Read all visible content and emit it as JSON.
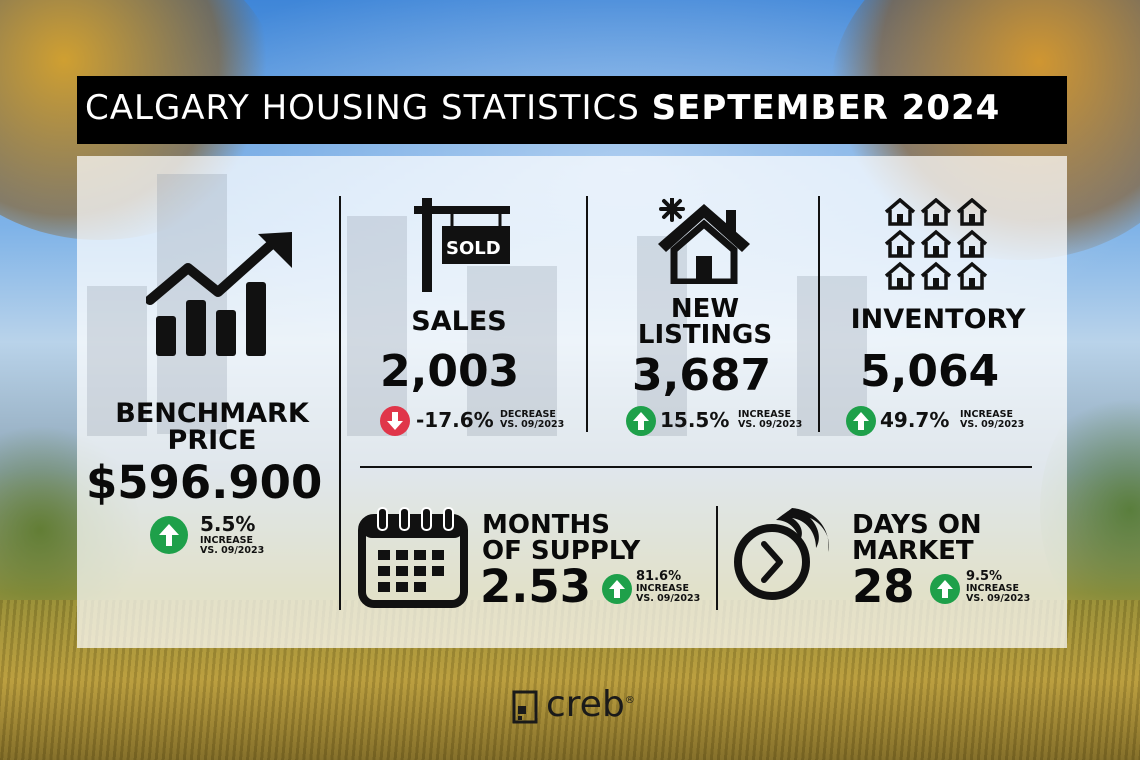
{
  "title": {
    "regular": "CALGARY HOUSING STATISTICS",
    "bold": "SEPTEMBER 2024"
  },
  "benchmark": {
    "label_line1": "BENCHMARK",
    "label_line2": "PRICE",
    "value": "$596.900",
    "change": "5.5%",
    "note_line1": "INCREASE",
    "note_line2": "VS. 09/2023",
    "direction": "up"
  },
  "sales": {
    "label": "SALES",
    "sign_text": "SOLD",
    "value": "2,003",
    "change": "-17.6%",
    "note_line1": "DECREASE",
    "note_line2": "VS. 09/2023",
    "direction": "down"
  },
  "new_listings": {
    "label_line1": "NEW",
    "label_line2": "LISTINGS",
    "value": "3,687",
    "change": "15.5%",
    "note_line1": "INCREASE",
    "note_line2": "VS. 09/2023",
    "direction": "up"
  },
  "inventory": {
    "label": "INVENTORY",
    "value": "5,064",
    "change": "49.7%",
    "note_line1": "INCREASE",
    "note_line2": "VS. 09/2023",
    "direction": "up"
  },
  "months_of_supply": {
    "label_line1": "MONTHS",
    "label_line2": "OF SUPPLY",
    "value": "2.53",
    "change": "81.6%",
    "note_line1": "INCREASE",
    "note_line2": "VS. 09/2023",
    "direction": "up"
  },
  "days_on_market": {
    "label_line1": "DAYS ON",
    "label_line2": "MARKET",
    "value": "28",
    "change": "9.5%",
    "note_line1": "INCREASE",
    "note_line2": "VS. 09/2023",
    "direction": "up"
  },
  "brand": {
    "name": "creb",
    "mark": "®"
  },
  "colors": {
    "up": "#1ea04a",
    "down": "#e0364a",
    "title_bg": "#000000"
  },
  "icons": [
    "trend-chart-icon",
    "sold-sign-icon",
    "new-house-icon",
    "houses-grid-icon",
    "calendar-icon",
    "fast-clock-icon"
  ]
}
